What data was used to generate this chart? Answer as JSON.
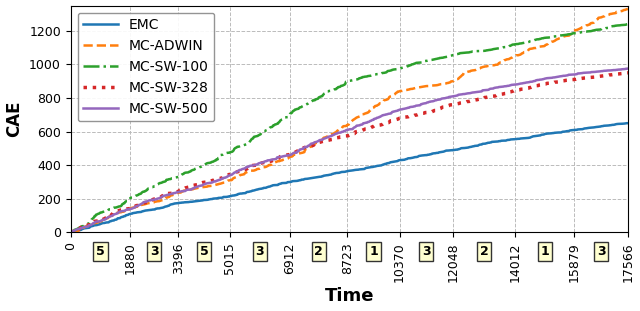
{
  "title": "",
  "xlabel": "Time",
  "ylabel": "CAE",
  "xlim": [
    0,
    17566
  ],
  "ylim": [
    0,
    1350
  ],
  "xticks": [
    0,
    1880,
    3396,
    5015,
    6912,
    8723,
    10370,
    12048,
    14012,
    15879,
    17566
  ],
  "yticks": [
    0,
    200,
    400,
    600,
    800,
    1000,
    1200
  ],
  "segment_labels": [
    "5",
    "3",
    "5",
    "3",
    "2",
    "1",
    "3",
    "2",
    "1",
    "3"
  ],
  "lines": [
    {
      "label": "EMC",
      "color": "#1f77b4",
      "linestyle": "-",
      "linewidth": 1.8
    },
    {
      "label": "MC-ADWIN",
      "color": "#ff7f0e",
      "linestyle": "--",
      "linewidth": 1.8
    },
    {
      "label": "MC-SW-100",
      "color": "#2ca02c",
      "linestyle": "-.",
      "linewidth": 1.8
    },
    {
      "label": "MC-SW-328",
      "color": "#d62728",
      "linestyle": ":",
      "linewidth": 2.5
    },
    {
      "label": "MC-SW-500",
      "color": "#9467bd",
      "linestyle": "-",
      "linewidth": 1.8
    }
  ],
  "box_facecolor": "#ffffd0",
  "box_edgecolor": "#333333",
  "grid_color": "#bbbbbb",
  "grid_linestyle": "--",
  "background_color": "#ffffff",
  "legend_loc": "upper left",
  "ylabel_fontsize": 12,
  "xlabel_fontsize": 13,
  "tick_fontsize": 9,
  "legend_fontsize": 10
}
